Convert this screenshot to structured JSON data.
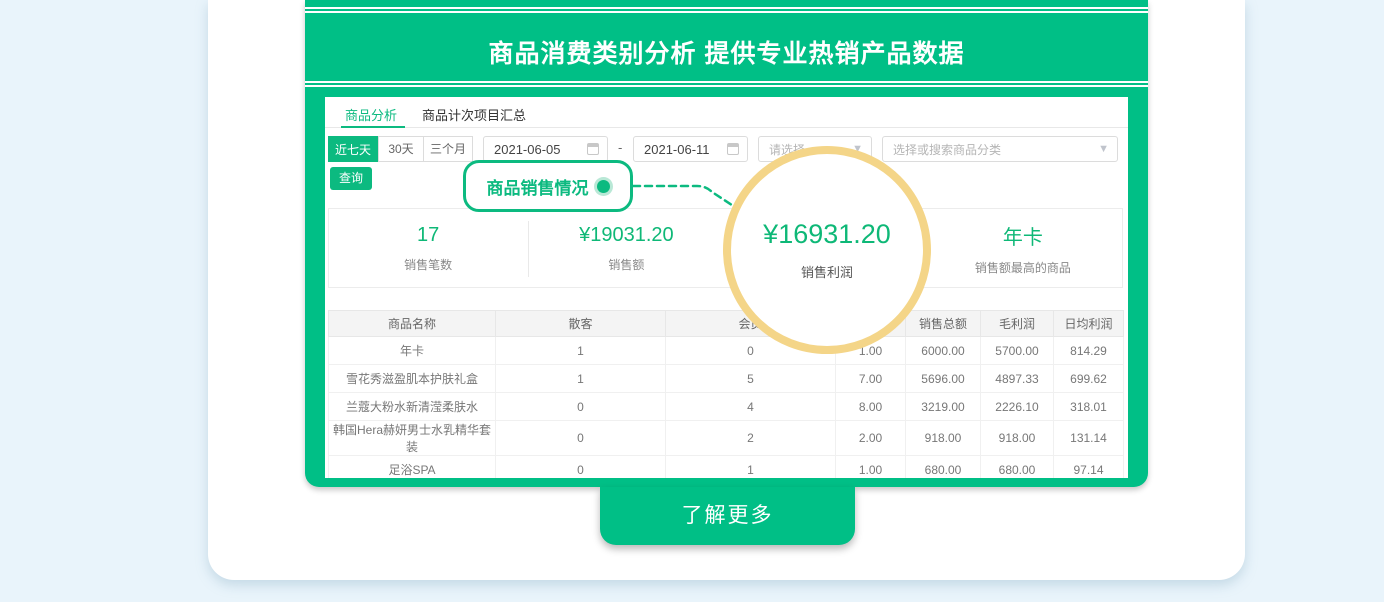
{
  "colors": {
    "brand_green": "#00bf86",
    "accent_green": "#0cba80",
    "number_green": "#0eb877",
    "magnifier_yellow": "#f4d588",
    "page_bg": "#e9f4fb"
  },
  "header": {
    "title": "商品消费类别分析 提供专业热销产品数据"
  },
  "dashboard": {
    "tabs": [
      {
        "label": "商品分析",
        "active": true
      },
      {
        "label": "商品计次项目汇总",
        "active": false
      }
    ],
    "filters": {
      "range_buttons": [
        {
          "label": "近七天",
          "active": true
        },
        {
          "label": "30天",
          "active": false
        },
        {
          "label": "三个月",
          "active": false
        }
      ],
      "date_start": "2021-06-05",
      "date_separator": "-",
      "date_end": "2021-06-11",
      "select_placeholder_1": "请选择",
      "select_placeholder_2": "选择或搜索商品分类",
      "query_button": "查询"
    },
    "callout": {
      "label": "商品销售情况"
    },
    "stats": [
      {
        "value": "17",
        "label": "销售笔数"
      },
      {
        "value": "¥19031.20",
        "label": "销售额"
      },
      {
        "value": "¥16931.20",
        "label": "销售利润"
      },
      {
        "value": "年卡",
        "label": "销售额最高的商品"
      }
    ],
    "magnifier": {
      "value": "¥16931.20",
      "label": "销售利润"
    },
    "table": {
      "headers": [
        "商品名称",
        "散客",
        "会员",
        "",
        "销售总额",
        "毛利润",
        "日均利润"
      ],
      "rows": [
        [
          "年卡",
          "1",
          "0",
          "1.00",
          "6000.00",
          "5700.00",
          "814.29"
        ],
        [
          "雪花秀滋盈肌本护肤礼盒",
          "1",
          "5",
          "7.00",
          "5696.00",
          "4897.33",
          "699.62"
        ],
        [
          "兰蔻大粉水新清滢柔肤水",
          "0",
          "4",
          "8.00",
          "3219.00",
          "2226.10",
          "318.01"
        ],
        [
          "韩国Hera赫妍男士水乳精华套装",
          "0",
          "2",
          "2.00",
          "918.00",
          "918.00",
          "131.14"
        ],
        [
          "足浴SPA",
          "0",
          "1",
          "1.00",
          "680.00",
          "680.00",
          "97.14"
        ]
      ]
    }
  },
  "icons": {
    "caret_down": "▼",
    "dash": "-"
  },
  "cta": {
    "label": "了解更多"
  }
}
